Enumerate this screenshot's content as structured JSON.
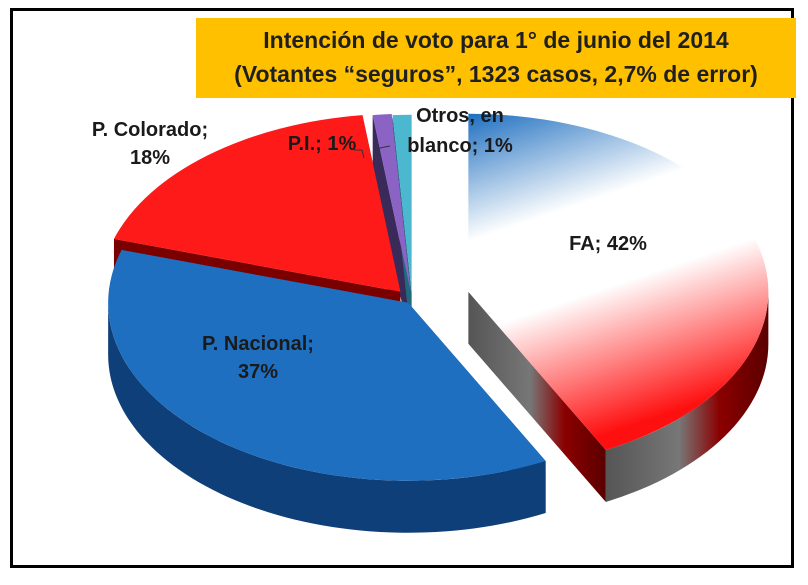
{
  "chart_data": {
    "type": "pie",
    "title": "Intención de voto para 1° de junio del 2014",
    "subtitle": "(Votantes “seguros”, 1323 casos, 2,7% de error)",
    "categories": [
      "FA",
      "P. Nacional",
      "P. Colorado",
      "P.I.",
      "Otros, en blanco"
    ],
    "values": [
      42,
      37,
      18,
      1,
      1
    ],
    "labels": [
      [
        "FA; 42%"
      ],
      [
        "P. Nacional;",
        "37%"
      ],
      [
        "P. Colorado;",
        "18%"
      ],
      [
        "P.I.; 1%"
      ],
      [
        "Otros, en",
        "blanco; 1%"
      ]
    ],
    "colors": {
      "fa_top": "#ffffff",
      "fa_side": "#8b0000",
      "nacional": "#1f6fc0",
      "colorado": "#ff1a1a",
      "pi": "#8a63c4",
      "otros": "#4bb8cf"
    },
    "exploded": true,
    "three_d": true,
    "legend": "none"
  }
}
